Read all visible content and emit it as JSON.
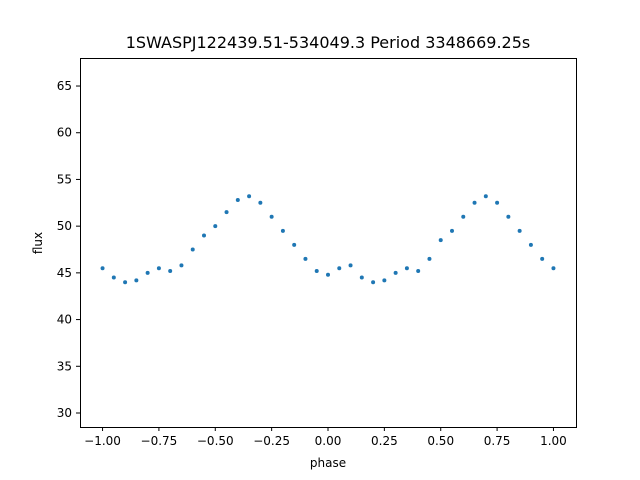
{
  "chart_data": {
    "type": "scatter",
    "title": "1SWASPJ122439.51-534049.3 Period 3348669.25s",
    "xlabel": "phase",
    "ylabel": "flux",
    "xlim": [
      -1.1,
      1.1
    ],
    "ylim": [
      28.5,
      68.0
    ],
    "xticks": [
      {
        "value": -1.0,
        "label": "−1.00"
      },
      {
        "value": -0.75,
        "label": "−0.75"
      },
      {
        "value": -0.5,
        "label": "−0.50"
      },
      {
        "value": -0.25,
        "label": "−0.25"
      },
      {
        "value": 0.0,
        "label": "0.00"
      },
      {
        "value": 0.25,
        "label": "0.25"
      },
      {
        "value": 0.5,
        "label": "0.50"
      },
      {
        "value": 0.75,
        "label": "0.75"
      },
      {
        "value": 1.0,
        "label": "1.00"
      }
    ],
    "yticks": [
      {
        "value": 30,
        "label": "30"
      },
      {
        "value": 35,
        "label": "35"
      },
      {
        "value": 40,
        "label": "40"
      },
      {
        "value": 45,
        "label": "45"
      },
      {
        "value": 50,
        "label": "50"
      },
      {
        "value": 55,
        "label": "55"
      },
      {
        "value": 60,
        "label": "60"
      },
      {
        "value": 65,
        "label": "65"
      }
    ],
    "grid": false,
    "legend": "none",
    "point_color": "#1f77b4",
    "series": [
      {
        "x": [
          -1.0,
          -0.95,
          -0.9,
          -0.85,
          -0.8,
          -0.75,
          -0.7,
          -0.65,
          -0.6,
          -0.55,
          -0.5,
          -0.45,
          -0.4,
          -0.35,
          -0.3,
          -0.25,
          -0.2,
          -0.15,
          -0.1,
          -0.05,
          0.0,
          0.05,
          0.1,
          0.15,
          0.2,
          0.25,
          0.3,
          0.35,
          0.4,
          0.45,
          0.5,
          0.55,
          0.6,
          0.65,
          0.7,
          0.75,
          0.8,
          0.85,
          0.9,
          0.95,
          1.0
        ],
        "y": [
          45.5,
          44.5,
          44.0,
          44.2,
          45.0,
          45.5,
          45.2,
          45.8,
          47.5,
          49.0,
          50.0,
          51.5,
          52.8,
          53.2,
          52.5,
          51.0,
          49.5,
          48.0,
          46.5,
          45.2,
          44.8,
          45.5,
          45.8,
          44.5,
          44.0,
          44.2,
          45.0,
          45.5,
          45.2,
          46.5,
          48.5,
          49.5,
          51.0,
          52.5,
          53.2,
          52.5,
          51.0,
          49.5,
          48.0,
          46.5,
          45.5
        ]
      }
    ]
  }
}
